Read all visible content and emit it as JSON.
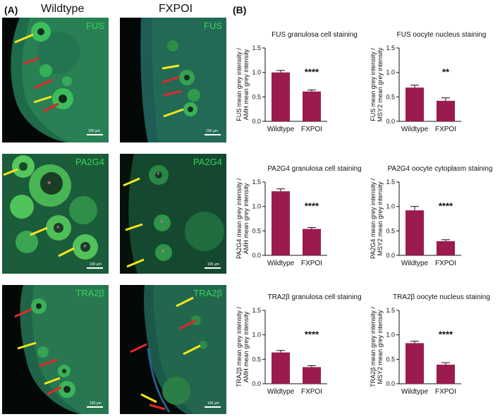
{
  "panels": {
    "a": "(A)",
    "b": "(B)"
  },
  "columns": {
    "left": "Wildtype",
    "right": "FXPOI"
  },
  "micrographs": [
    {
      "stain": "FUS",
      "scalebar": "100 µm"
    },
    {
      "stain": "FUS",
      "scalebar": "100 µm"
    },
    {
      "stain": "PA2G4",
      "scalebar": "100 µm"
    },
    {
      "stain": "PA2G4",
      "scalebar": "100 µm"
    },
    {
      "stain": "TRA2β",
      "scalebar": "100 µm"
    },
    {
      "stain": "TRA2β",
      "scalebar": "100 µm"
    }
  ],
  "colors": {
    "bar": "#9b1b4f",
    "fluor": "#35c95a",
    "yellow_arrow": "#f5e61b",
    "red_arrow": "#e4262b",
    "asterisk": "#ff66cc"
  },
  "chart_data": [
    {
      "type": "bar",
      "title": "FUS granulosa cell staining",
      "ylabel_line1": "FUS mean grey intensity /",
      "ylabel_line2": "AMH mean grey intensity",
      "categories": [
        "Wildtype",
        "FXPOI"
      ],
      "values": [
        1.0,
        0.61
      ],
      "errors": [
        0.04,
        0.03
      ],
      "ylim": [
        0,
        1.5
      ],
      "yticks": [
        "0.0",
        "0.5",
        "1.0",
        "1.5"
      ],
      "significance": "****"
    },
    {
      "type": "bar",
      "title": "FUS oocyte nucleus staining",
      "ylabel_line1": "FUS mean grey intensity /",
      "ylabel_line2": "MSY2 mean grey intensity",
      "categories": [
        "Wildtype",
        "FXPOI"
      ],
      "values": [
        0.69,
        0.42
      ],
      "errors": [
        0.05,
        0.06
      ],
      "ylim": [
        0,
        1.5
      ],
      "yticks": [
        "0.0",
        "0.5",
        "1.0",
        "1.5"
      ],
      "significance": "**"
    },
    {
      "type": "bar",
      "title": "PA2G4 granulosa cell staining",
      "ylabel_line1": "PA2G4 mean grey intensity /",
      "ylabel_line2": "AMH mean grey intensity",
      "categories": [
        "Wildtype",
        "FXPOI"
      ],
      "values": [
        1.31,
        0.54
      ],
      "errors": [
        0.05,
        0.03
      ],
      "ylim": [
        0,
        1.5
      ],
      "yticks": [
        "0.0",
        "0.5",
        "1.0",
        "1.5"
      ],
      "significance": "****"
    },
    {
      "type": "bar",
      "title": "PA2G4 oocyte cytoplasm staining",
      "ylabel_line1": "PA2G4 mean grey intensity /",
      "ylabel_line2": "MSY2 mean grey intensity",
      "categories": [
        "Wildtype",
        "FXPOI"
      ],
      "values": [
        0.92,
        0.29
      ],
      "errors": [
        0.08,
        0.03
      ],
      "ylim": [
        0,
        1.5
      ],
      "yticks": [
        "0.0",
        "0.5",
        "1.0",
        "1.5"
      ],
      "significance": "****"
    },
    {
      "type": "bar",
      "title": "TRA2β granulosa cell staining",
      "ylabel_line1": "TRA2β mean grey intensity /",
      "ylabel_line2": "AMH mean grey intensity",
      "categories": [
        "Wildtype",
        "FXPOI"
      ],
      "values": [
        0.64,
        0.34
      ],
      "errors": [
        0.04,
        0.03
      ],
      "ylim": [
        0,
        1.5
      ],
      "yticks": [
        "0.0",
        "0.5",
        "1.0",
        "1.5"
      ],
      "significance": "****"
    },
    {
      "type": "bar",
      "title": "TRA2β oocyte nucleus staining",
      "ylabel_line1": "TRA2β mean grey intensity /",
      "ylabel_line2": "MSY2 mean grey intensity",
      "categories": [
        "Wildtype",
        "FXPOI"
      ],
      "values": [
        0.83,
        0.39
      ],
      "errors": [
        0.04,
        0.04
      ],
      "ylim": [
        0,
        1.5
      ],
      "yticks": [
        "0.0",
        "0.5",
        "1.0",
        "1.5"
      ],
      "significance": "****"
    }
  ]
}
